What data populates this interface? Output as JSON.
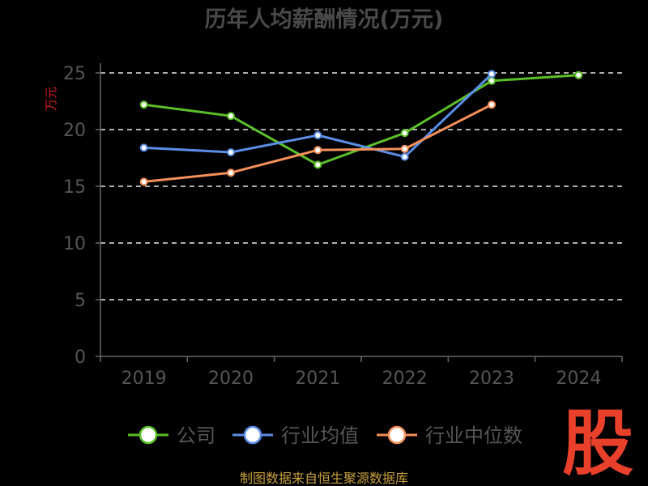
{
  "chart_data": {
    "type": "line",
    "title": "历年人均薪酬情况(万元)",
    "ylabel": "万元",
    "xlabel": "",
    "categories": [
      "2019",
      "2020",
      "2021",
      "2022",
      "2023",
      "2024"
    ],
    "ylim": [
      0,
      25
    ],
    "yticks": [
      0,
      5,
      10,
      15,
      20,
      25
    ],
    "grid": true,
    "legend_position": "bottom",
    "series": [
      {
        "name": "公司",
        "color": "#5cbf2a",
        "values": [
          22.2,
          21.2,
          16.9,
          19.7,
          24.3,
          24.8
        ]
      },
      {
        "name": "行业均值",
        "color": "#5b8ee6",
        "values": [
          18.4,
          18.0,
          19.5,
          17.6,
          24.9,
          null
        ]
      },
      {
        "name": "行业中位数",
        "color": "#f5905a",
        "values": [
          15.4,
          16.2,
          18.2,
          18.3,
          22.2,
          null
        ]
      }
    ]
  },
  "watermark": {
    "text": "股",
    "color": "#e8402a"
  },
  "source": "制图数据来自恒生聚源数据库"
}
